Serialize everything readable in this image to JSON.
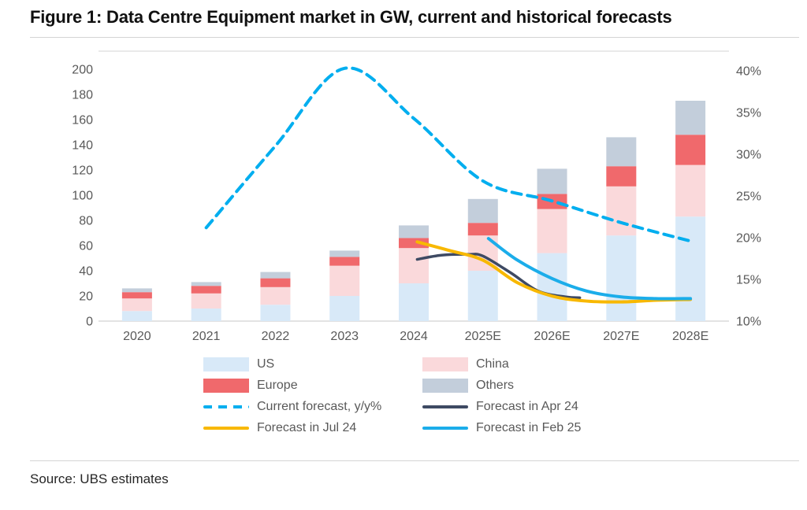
{
  "title": "Figure 1: Data Centre Equipment market in GW, current and historical forecasts",
  "source": "Source: UBS estimates",
  "chart_data": {
    "type": "combo-stacked-bar-line",
    "title": "Data Centre Equipment market in GW, current and historical forecasts",
    "categories": [
      "2020",
      "2021",
      "2022",
      "2023",
      "2024",
      "2025E",
      "2026E",
      "2027E",
      "2028E"
    ],
    "bar_series": [
      {
        "name": "US",
        "color": "#d8e9f8",
        "values": [
          8,
          10,
          13,
          20,
          30,
          40,
          54,
          68,
          83
        ]
      },
      {
        "name": "China",
        "color": "#fad9db",
        "values": [
          10,
          12,
          14,
          24,
          28,
          28,
          35,
          39,
          41
        ]
      },
      {
        "name": "Europe",
        "color": "#f0696c",
        "values": [
          5,
          6,
          7,
          7,
          8,
          10,
          12,
          16,
          24
        ]
      },
      {
        "name": "Others",
        "color": "#c3cedb",
        "values": [
          3,
          3,
          5,
          5,
          10,
          19,
          20,
          23,
          27
        ]
      }
    ],
    "line_series": [
      {
        "name": "Current forecast, y/y%",
        "color": "#00aeef",
        "style": "dashed",
        "width": 4,
        "axis": "right",
        "points": [
          [
            1,
            21.2
          ],
          [
            2,
            31.0
          ],
          [
            3,
            40.3
          ],
          [
            4,
            34.3
          ],
          [
            5,
            26.8
          ],
          [
            6,
            24.4
          ],
          [
            7,
            21.8
          ],
          [
            8,
            19.6
          ]
        ]
      },
      {
        "name": "Forecast in Apr 24",
        "color": "#3e4a63",
        "style": "solid",
        "width": 3.5,
        "axis": "right",
        "points": [
          [
            4.05,
            17.4
          ],
          [
            4.4,
            17.9
          ],
          [
            4.8,
            18.0
          ],
          [
            5,
            17.8
          ],
          [
            5.4,
            15.8
          ],
          [
            5.8,
            13.6
          ],
          [
            6.2,
            12.9
          ],
          [
            6.4,
            12.8
          ]
        ]
      },
      {
        "name": "Forecast in Jul 24",
        "color": "#f8b800",
        "style": "solid",
        "width": 4,
        "axis": "right",
        "points": [
          [
            4.05,
            19.5
          ],
          [
            4.5,
            18.5
          ],
          [
            5,
            17.3
          ],
          [
            5.5,
            14.6
          ],
          [
            6,
            13.0
          ],
          [
            6.5,
            12.4
          ],
          [
            7,
            12.3
          ],
          [
            7.5,
            12.5
          ],
          [
            8,
            12.6
          ]
        ]
      },
      {
        "name": "Forecast in Feb 25",
        "color": "#1badea",
        "style": "solid",
        "width": 4,
        "axis": "right",
        "points": [
          [
            5.08,
            19.9
          ],
          [
            5.5,
            17.3
          ],
          [
            6,
            15.1
          ],
          [
            6.5,
            13.6
          ],
          [
            7,
            12.9
          ],
          [
            7.5,
            12.7
          ],
          [
            8,
            12.7
          ]
        ]
      }
    ],
    "left_axis": {
      "min": 0,
      "max": 200,
      "step": 20,
      "ticks": [
        "0",
        "20",
        "40",
        "60",
        "80",
        "100",
        "120",
        "140",
        "160",
        "180",
        "200"
      ]
    },
    "right_axis": {
      "min": 10,
      "max": 40,
      "step": 5,
      "suffix": "%",
      "ticks": [
        "10%",
        "15%",
        "20%",
        "25%",
        "30%",
        "35%",
        "40%"
      ]
    },
    "legend": {
      "columns": 2,
      "order": [
        "US",
        "China",
        "Europe",
        "Others",
        "Current forecast, y/y%",
        "Forecast in Apr 24",
        "Forecast in Jul 24",
        "Forecast in Feb 25"
      ]
    },
    "grid": "off",
    "legend_position": "bottom"
  }
}
